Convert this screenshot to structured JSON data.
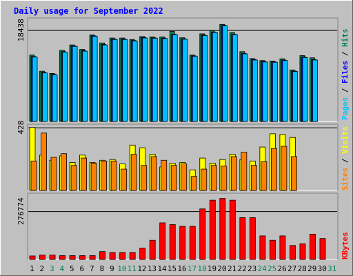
{
  "chart_data": {
    "type": "bar",
    "title": "Daily usage for September 2022",
    "categories": [
      "1",
      "2",
      "3",
      "4",
      "5",
      "6",
      "7",
      "8",
      "9",
      "10",
      "11",
      "12",
      "13",
      "14",
      "15",
      "16",
      "17",
      "18",
      "19",
      "20",
      "21",
      "22",
      "23",
      "24",
      "25",
      "26",
      "27",
      "28",
      "29",
      "30",
      "31"
    ],
    "weekend_days": [
      "3",
      "4",
      "10",
      "11",
      "17",
      "18",
      "24",
      "25",
      "31"
    ],
    "panels": [
      {
        "key": "hits_files_pages",
        "tick_label": "18438",
        "tick_value": 18438,
        "ymax": 20900,
        "series": [
          {
            "name": "Hits",
            "values": [
              13400,
              10150,
              9700,
              14350,
              15450,
              14550,
              17450,
              15850,
              16850,
              16850,
              16550,
              17150,
              17050,
              17050,
              18200,
              16900,
              13400,
              17700,
              18350,
              19600,
              17950,
              14100,
              12700,
              12300,
              12200,
              12650,
              10400,
              13300,
              12850,
              0,
              0
            ]
          },
          {
            "name": "Files",
            "values": [
              13100,
              9900,
              9500,
              14100,
              15250,
              14300,
              17300,
              15550,
              16650,
              16650,
              16350,
              16950,
              16900,
              16850,
              17600,
              16700,
              13250,
              17450,
              18050,
              19400,
              17600,
              13750,
              12500,
              12100,
              12050,
              12400,
              10200,
              13000,
              12500,
              0,
              0
            ]
          },
          {
            "name": "Pages",
            "values": [
              13000,
              9800,
              9400,
              14000,
              15150,
              14200,
              17200,
              15450,
              16550,
              16550,
              16250,
              16850,
              16800,
              16750,
              17500,
              16600,
              13150,
              17350,
              17950,
              19300,
              17500,
              13650,
              12400,
              12000,
              11950,
              12300,
              10100,
              12900,
              12400,
              0,
              0
            ]
          }
        ]
      },
      {
        "key": "visits_sites",
        "tick_label": "428",
        "tick_value": 428,
        "ymax": 450,
        "series": [
          {
            "name": "Visits",
            "values": [
              428,
              240,
              205,
              235,
              190,
              240,
              190,
              205,
              210,
              180,
              308,
              290,
              245,
              160,
              185,
              190,
              140,
              220,
              185,
              210,
              245,
              210,
              200,
              295,
              385,
              380,
              360,
              0,
              0,
              0,
              0
            ]
          },
          {
            "name": "Sites",
            "values": [
              200,
              390,
              225,
              250,
              170,
              220,
              185,
              200,
              200,
              145,
              245,
              170,
              230,
              205,
              170,
              180,
              95,
              145,
              170,
              165,
              230,
              260,
              170,
              195,
              285,
              300,
              230,
              0,
              0,
              0,
              0
            ]
          }
        ]
      },
      {
        "key": "kbytes",
        "tick_label": "276774",
        "tick_value": 276774,
        "ymax": 380000,
        "series": [
          {
            "name": "KBytes",
            "values": [
              20000,
              25000,
              25000,
              22000,
              22000,
              22000,
              22000,
              45000,
              40000,
              40000,
              40000,
              65000,
              110000,
              210000,
              200000,
              190000,
              190000,
              290000,
              340000,
              350000,
              340000,
              240000,
              240000,
              135000,
              110000,
              135000,
              80000,
              90000,
              145000,
              120000,
              0
            ]
          }
        ]
      }
    ]
  },
  "legends": {
    "top": [
      "Pages",
      "/",
      "Files",
      "/",
      "Hits"
    ],
    "middle": [
      "Sites",
      "/",
      "Visits"
    ],
    "bottom": [
      "KBytes"
    ]
  },
  "colors": {
    "background": "#C0C0C0",
    "title": "#0000FF",
    "hits": "#00805C",
    "files": "#0000FF",
    "pages": "#00C0FF",
    "visits": "#FFFF00",
    "sites": "#FF8000",
    "kbytes": "#FF0000",
    "weekday_label": "#000000",
    "weekend_label": "#00805C"
  }
}
